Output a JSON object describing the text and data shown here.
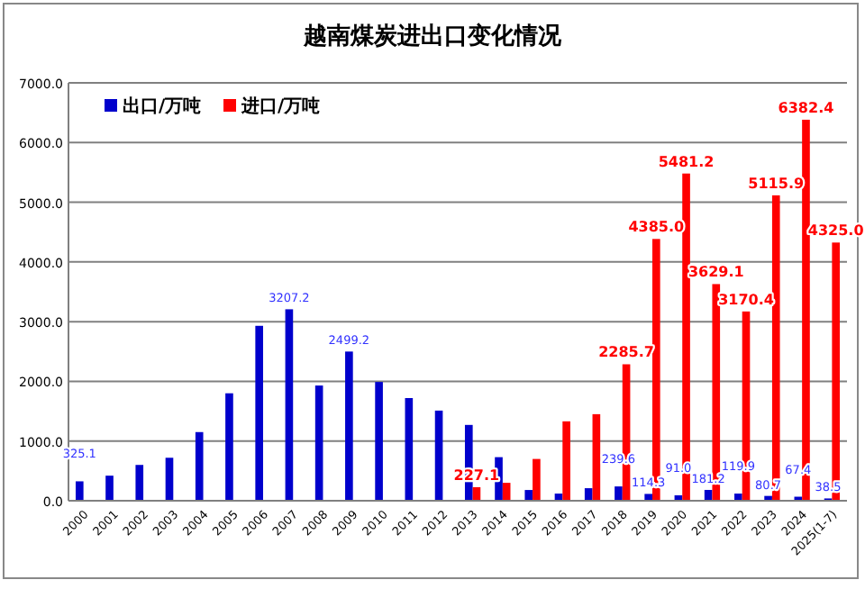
{
  "chart_data": {
    "type": "bar",
    "title": "越南煤炭进出口变化情况",
    "categories": [
      "2000",
      "2001",
      "2002",
      "2003",
      "2004",
      "2005",
      "2006",
      "2007",
      "2008",
      "2009",
      "2010",
      "2011",
      "2012",
      "2013",
      "2014",
      "2015",
      "2016",
      "2017",
      "2018",
      "2019",
      "2020",
      "2021",
      "2022",
      "2023",
      "2024",
      "2025(1-7)"
    ],
    "series": [
      {
        "name": "出口/万吨",
        "color": "#0000cc",
        "values": [
          325.1,
          420,
          600,
          720,
          1150,
          1800,
          2930,
          3207.2,
          1930,
          2499.2,
          1990,
          1720,
          1510,
          1270,
          730,
          180,
          120,
          210,
          239.6,
          114.3,
          91.0,
          181.2,
          119.9,
          80.7,
          67.4,
          38.5
        ],
        "value_labels": [
          "325.1",
          null,
          null,
          null,
          null,
          null,
          null,
          "3207.2",
          null,
          "2499.2",
          null,
          null,
          null,
          null,
          null,
          null,
          null,
          null,
          "239.6",
          "114.3",
          "91.0",
          "181.2",
          "119.9",
          "80.7",
          "67.4",
          "38.5"
        ]
      },
      {
        "name": "进口/万吨",
        "color": "#ff0000",
        "values": [
          null,
          null,
          null,
          null,
          null,
          null,
          null,
          null,
          null,
          null,
          null,
          null,
          null,
          227.1,
          300,
          700,
          1330,
          1450,
          2285.7,
          4385.0,
          5481.2,
          3629.1,
          3170.4,
          5115.9,
          6382.4,
          4325.0
        ],
        "value_labels": [
          null,
          null,
          null,
          null,
          null,
          null,
          null,
          null,
          null,
          null,
          null,
          null,
          null,
          "227.1",
          null,
          null,
          null,
          null,
          "2285.7",
          "4385.0",
          "5481.2",
          "3629.1",
          "3170.4",
          "5115.9",
          "6382.4",
          "4325.0"
        ]
      }
    ],
    "ylim": [
      0,
      7000
    ],
    "yticks": [
      {
        "value": 0,
        "label": "0.0"
      },
      {
        "value": 1000,
        "label": "1000.0"
      },
      {
        "value": 2000,
        "label": "2000.0"
      },
      {
        "value": 3000,
        "label": "3000.0"
      },
      {
        "value": 4000,
        "label": "4000.0"
      },
      {
        "value": 5000,
        "label": "5000.0"
      },
      {
        "value": 6000,
        "label": "6000.0"
      },
      {
        "value": 7000,
        "label": "7000.0"
      }
    ],
    "grid": "y",
    "legend": "top left"
  }
}
